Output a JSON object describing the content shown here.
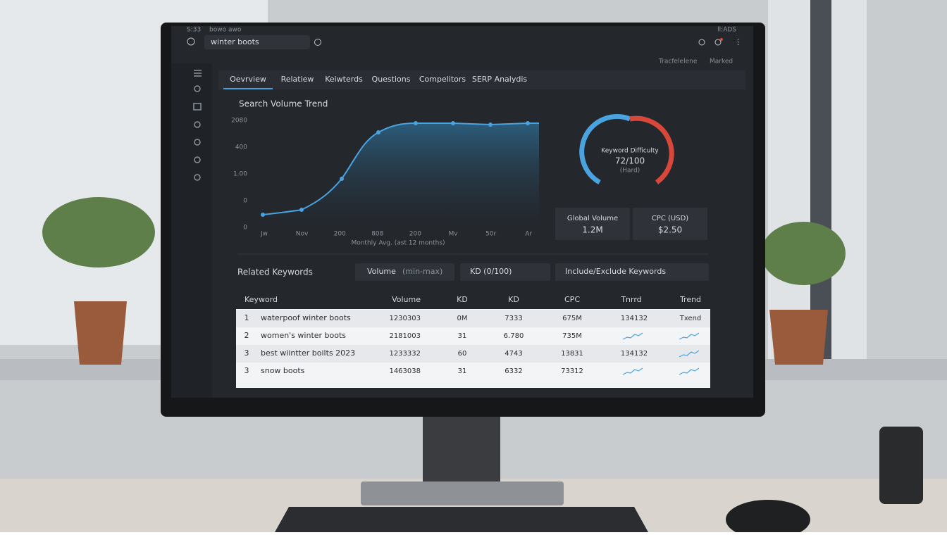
{
  "status_bar": {
    "time": "S:33",
    "carrier": "bowo awo",
    "right": "ll:ADS"
  },
  "search": {
    "query": "winter boots"
  },
  "toolbar": {
    "left": "Tracfelelene",
    "right": "Marked"
  },
  "tabs": [
    "Oevrview",
    "Relatiew",
    "Keiwterds",
    "Questions",
    "Compelitors",
    "SERP Analydis"
  ],
  "trend": {
    "title": "Search Volume Trend",
    "y_labels": [
      "2080",
      "400",
      "1.00",
      "0",
      "0"
    ],
    "x_labels": [
      "Jw",
      "Nov",
      "200",
      "808",
      "200",
      "Mv",
      "50r",
      "Ar"
    ],
    "caption": "Monthly Avg. (ast 12 months)"
  },
  "difficulty": {
    "label": "Keyword Difficulty",
    "score": "72/100",
    "level": "(Hard)"
  },
  "metrics": [
    {
      "label": "Global Volume",
      "value": "1.2M"
    },
    {
      "label": "CPC (USD)",
      "value": "$2.50"
    }
  ],
  "related": {
    "title": "Related Keywords",
    "filters": [
      "Volume",
      "(min-max)",
      "KD (0/100)",
      "Include/Exclude Keywords"
    ],
    "columns": [
      "Keyword",
      "Volume",
      "KD",
      "KD",
      "CPC",
      "Tnrrd",
      "Trend"
    ],
    "rows": [
      {
        "num": "1",
        "keyword": "waterpoof winter boots",
        "volume": "1230303",
        "kd": "0M",
        "kd2": "7333",
        "cpc": "675M",
        "trend1": "134132",
        "trend2": "Txend"
      },
      {
        "num": "2",
        "keyword": "women's winter boots",
        "volume": "2181003",
        "kd": "31",
        "kd2": "6.780",
        "cpc": "735M"
      },
      {
        "num": "3",
        "keyword": "best wiintter boilts 2023",
        "volume": "1233332",
        "kd": "60",
        "kd2": "4743",
        "cpc": "13831",
        "trend1": "134132"
      },
      {
        "num": "3",
        "keyword": "snow boots",
        "volume": "1463038",
        "kd": "31",
        "kd2": "6332",
        "cpc": "73312"
      }
    ]
  }
}
